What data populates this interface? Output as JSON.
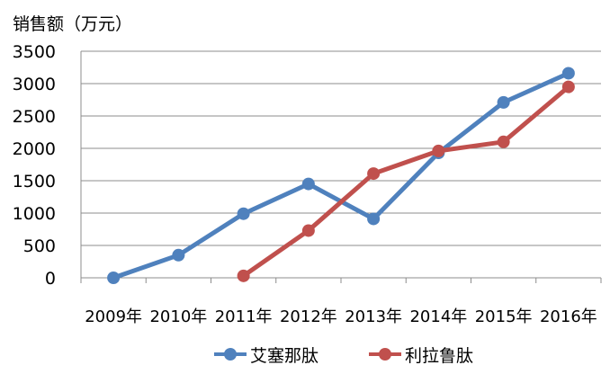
{
  "chart_data": {
    "type": "line",
    "ylabel": "销售额（万元）",
    "categories": [
      "2009年",
      "2010年",
      "2011年",
      "2012年",
      "2013年",
      "2014年",
      "2015年",
      "2016年"
    ],
    "ylim": [
      0,
      3500
    ],
    "yticks": [
      0,
      500,
      1000,
      1500,
      2000,
      2500,
      3000,
      3500
    ],
    "grid": true,
    "legend_position": "bottom",
    "series": [
      {
        "name": "艾塞那肽",
        "color": "#4f81bd",
        "values": [
          0,
          350,
          990,
          1450,
          910,
          1930,
          2710,
          3160
        ]
      },
      {
        "name": "利拉鲁肽",
        "color": "#c0504d",
        "values": [
          null,
          null,
          30,
          730,
          1610,
          1960,
          2100,
          2950
        ]
      }
    ]
  }
}
